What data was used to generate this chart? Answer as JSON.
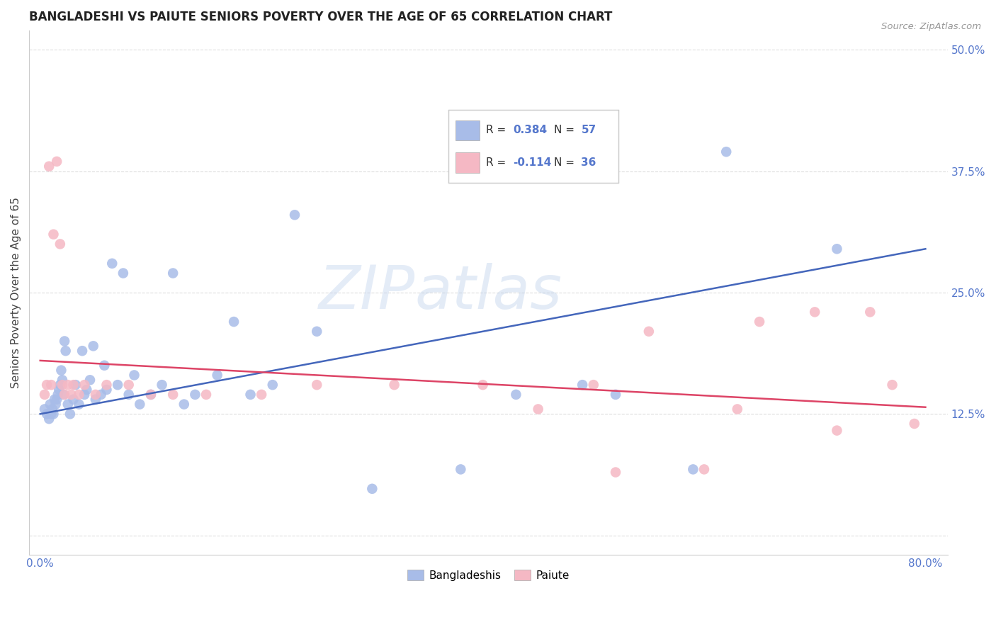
{
  "title": "BANGLADESHI VS PAIUTE SENIORS POVERTY OVER THE AGE OF 65 CORRELATION CHART",
  "source": "Source: ZipAtlas.com",
  "ylabel": "Seniors Poverty Over the Age of 65",
  "xlim": [
    -0.01,
    0.82
  ],
  "ylim": [
    -0.02,
    0.52
  ],
  "xticks": [
    0.0,
    0.1,
    0.2,
    0.3,
    0.4,
    0.5,
    0.6,
    0.7,
    0.8
  ],
  "xticklabels": [
    "0.0%",
    "",
    "",
    "",
    "",
    "",
    "",
    "",
    "80.0%"
  ],
  "yticks": [
    0.0,
    0.125,
    0.25,
    0.375,
    0.5
  ],
  "yticklabels": [
    "",
    "12.5%",
    "25.0%",
    "37.5%",
    "50.0%"
  ],
  "blue_scatter_color": "#a8bce8",
  "pink_scatter_color": "#f5b8c4",
  "blue_line_color": "#4466bb",
  "pink_line_color": "#dd4466",
  "tick_color": "#5577cc",
  "R_blue": "0.384",
  "N_blue": "57",
  "R_pink": "-0.114",
  "N_pink": "36",
  "blue_line_y0": 0.125,
  "blue_line_y1": 0.295,
  "pink_line_y0": 0.18,
  "pink_line_y1": 0.132,
  "blue_scatter_x": [
    0.004,
    0.006,
    0.008,
    0.009,
    0.01,
    0.011,
    0.012,
    0.013,
    0.014,
    0.015,
    0.016,
    0.017,
    0.018,
    0.019,
    0.02,
    0.021,
    0.022,
    0.023,
    0.025,
    0.027,
    0.03,
    0.032,
    0.035,
    0.038,
    0.04,
    0.042,
    0.045,
    0.048,
    0.05,
    0.055,
    0.058,
    0.06,
    0.065,
    0.07,
    0.075,
    0.08,
    0.085,
    0.09,
    0.1,
    0.11,
    0.12,
    0.13,
    0.14,
    0.16,
    0.175,
    0.19,
    0.21,
    0.23,
    0.25,
    0.3,
    0.38,
    0.43,
    0.49,
    0.52,
    0.59,
    0.62,
    0.72
  ],
  "blue_scatter_y": [
    0.13,
    0.125,
    0.12,
    0.135,
    0.125,
    0.13,
    0.125,
    0.14,
    0.135,
    0.14,
    0.145,
    0.15,
    0.155,
    0.17,
    0.16,
    0.145,
    0.2,
    0.19,
    0.135,
    0.125,
    0.14,
    0.155,
    0.135,
    0.19,
    0.145,
    0.15,
    0.16,
    0.195,
    0.14,
    0.145,
    0.175,
    0.15,
    0.28,
    0.155,
    0.27,
    0.145,
    0.165,
    0.135,
    0.145,
    0.155,
    0.27,
    0.135,
    0.145,
    0.165,
    0.22,
    0.145,
    0.155,
    0.33,
    0.21,
    0.048,
    0.068,
    0.145,
    0.155,
    0.145,
    0.068,
    0.395,
    0.295
  ],
  "pink_scatter_x": [
    0.004,
    0.006,
    0.008,
    0.01,
    0.012,
    0.015,
    0.018,
    0.02,
    0.022,
    0.025,
    0.028,
    0.03,
    0.035,
    0.04,
    0.05,
    0.06,
    0.08,
    0.1,
    0.12,
    0.15,
    0.2,
    0.25,
    0.32,
    0.4,
    0.45,
    0.5,
    0.52,
    0.55,
    0.6,
    0.63,
    0.65,
    0.7,
    0.72,
    0.75,
    0.77,
    0.79
  ],
  "pink_scatter_y": [
    0.145,
    0.155,
    0.38,
    0.155,
    0.31,
    0.385,
    0.3,
    0.155,
    0.145,
    0.155,
    0.145,
    0.155,
    0.145,
    0.155,
    0.145,
    0.155,
    0.155,
    0.145,
    0.145,
    0.145,
    0.145,
    0.155,
    0.155,
    0.155,
    0.13,
    0.155,
    0.065,
    0.21,
    0.068,
    0.13,
    0.22,
    0.23,
    0.108,
    0.23,
    0.155,
    0.115
  ]
}
